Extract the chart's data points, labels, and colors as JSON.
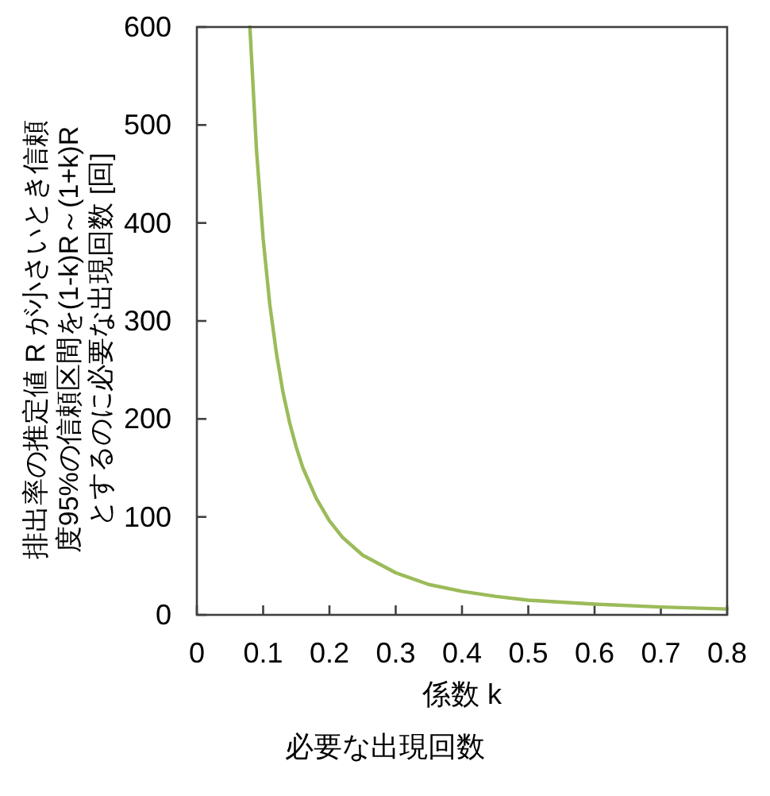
{
  "chart_data": {
    "type": "line",
    "title": "必要な出現回数",
    "xlabel": "係数 k",
    "ylabel": "排出率の推定値 R が小さいとき信頼度95%の信頼区間を(1-k)R～(1+k)Rとするのに必要な出現回数 [回]",
    "x": [
      0.08,
      0.09,
      0.1,
      0.11,
      0.12,
      0.13,
      0.14,
      0.15,
      0.16,
      0.18,
      0.2,
      0.22,
      0.25,
      0.3,
      0.35,
      0.4,
      0.45,
      0.5,
      0.6,
      0.7,
      0.8
    ],
    "series": [
      {
        "color": "#9bbb59",
        "values": [
          600,
          474,
          384,
          317,
          267,
          227,
          196,
          171,
          150,
          119,
          96,
          79,
          61,
          43,
          31,
          24,
          19,
          15,
          11,
          8,
          6
        ]
      }
    ],
    "xlim": [
      0,
      0.8
    ],
    "ylim": [
      0,
      600
    ],
    "xticks": [
      0,
      0.1,
      0.2,
      0.3,
      0.4,
      0.5,
      0.6,
      0.7,
      0.8
    ],
    "yticks": [
      0,
      100,
      200,
      300,
      400,
      500,
      600
    ]
  }
}
